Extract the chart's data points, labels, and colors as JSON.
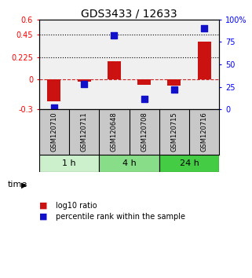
{
  "title": "GDS3433 / 12633",
  "samples": [
    "GSM120710",
    "GSM120711",
    "GSM120648",
    "GSM120708",
    "GSM120715",
    "GSM120716"
  ],
  "log10_ratio": [
    -0.22,
    -0.02,
    0.18,
    -0.055,
    -0.06,
    0.38
  ],
  "percentile_rank": [
    2,
    28,
    82,
    12,
    22,
    90
  ],
  "groups": [
    {
      "label": "1 h",
      "indices": [
        0,
        1
      ],
      "color": "#ccf0cc"
    },
    {
      "label": "4 h",
      "indices": [
        2,
        3
      ],
      "color": "#88dd88"
    },
    {
      "label": "24 h",
      "indices": [
        4,
        5
      ],
      "color": "#44cc44"
    }
  ],
  "ylim_left": [
    -0.3,
    0.6
  ],
  "ylim_right": [
    0,
    100
  ],
  "yticks_left": [
    -0.3,
    0,
    0.225,
    0.45,
    0.6
  ],
  "yticks_right": [
    0,
    25,
    50,
    75,
    100
  ],
  "hlines": [
    0.225,
    0.45
  ],
  "bar_color": "#cc1111",
  "dot_color": "#1111cc",
  "bar_width": 0.45,
  "dot_size": 28,
  "background_color": "#ffffff",
  "plot_bg": "#f0f0f0",
  "label_bg": "#c8c8c8",
  "title_fontsize": 10,
  "tick_fontsize": 7,
  "sample_fontsize": 6,
  "group_fontsize": 8,
  "legend_fontsize": 7
}
